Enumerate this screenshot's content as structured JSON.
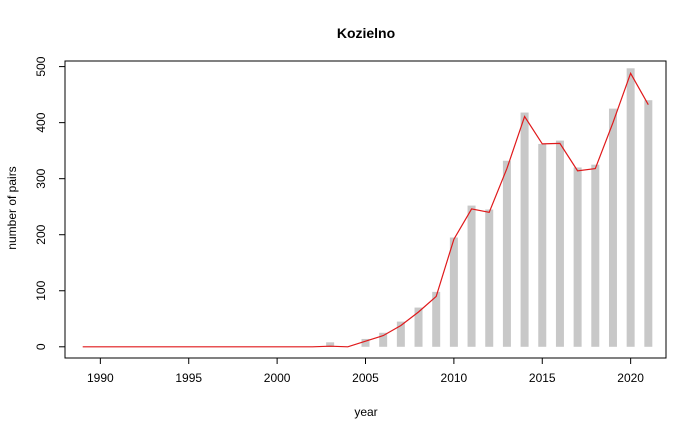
{
  "chart_data": {
    "type": "bar",
    "title": "Kozielno",
    "xlabel": "year",
    "ylabel": "number of pairs",
    "xlim": [
      1988,
      2022
    ],
    "ylim": [
      -20,
      510
    ],
    "x_ticks": [
      1990,
      1995,
      2000,
      2005,
      2010,
      2015,
      2020
    ],
    "y_ticks": [
      0,
      100,
      200,
      300,
      400,
      500
    ],
    "grid": false,
    "legend": "none",
    "colors": {
      "bars": "#c8c8c8",
      "line": "#e0191b"
    },
    "bars": {
      "x": [
        2003,
        2005,
        2006,
        2007,
        2008,
        2009,
        2010,
        2011,
        2012,
        2013,
        2014,
        2015,
        2016,
        2017,
        2018,
        2019,
        2020,
        2021
      ],
      "values": [
        8,
        14,
        25,
        45,
        70,
        98,
        195,
        252,
        245,
        332,
        418,
        362,
        368,
        320,
        325,
        425,
        497,
        440
      ]
    },
    "series": [
      {
        "type": "line",
        "x": [
          1989,
          1990,
          1991,
          1992,
          1993,
          1994,
          1995,
          1996,
          1997,
          1998,
          1999,
          2000,
          2001,
          2002,
          2003,
          2004,
          2005,
          2006,
          2007,
          2008,
          2009,
          2010,
          2011,
          2012,
          2013,
          2014,
          2015,
          2016,
          2017,
          2018,
          2019,
          2020,
          2021
        ],
        "values": [
          0,
          0,
          0,
          0,
          0,
          0,
          0,
          0,
          0,
          0,
          0,
          0,
          0,
          0,
          1,
          0,
          10,
          20,
          38,
          62,
          90,
          192,
          246,
          240,
          318,
          411,
          362,
          363,
          314,
          318,
          400,
          488,
          432
        ]
      }
    ]
  }
}
